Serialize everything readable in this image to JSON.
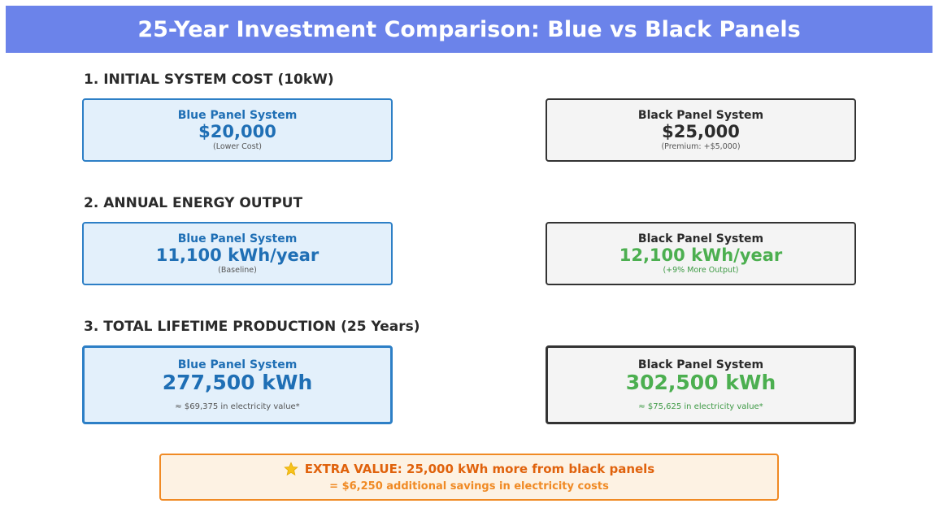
{
  "title": "25-Year Investment Comparison: Blue vs Black Panels",
  "sections": [
    {
      "heading": "1. INITIAL SYSTEM COST (10kW)",
      "blue": {
        "label": "Blue Panel System",
        "value": "$20,000",
        "note": "(Lower Cost)"
      },
      "black": {
        "label": "Black Panel System",
        "value": "$25,000",
        "note": "(Premium: +$5,000)"
      }
    },
    {
      "heading": "2. ANNUAL ENERGY OUTPUT",
      "blue": {
        "label": "Blue Panel System",
        "value": "11,100 kWh/year",
        "note": "(Baseline)"
      },
      "black": {
        "label": "Black Panel System",
        "value": "12,100 kWh/year",
        "note": "(+9% More Output)"
      }
    },
    {
      "heading": "3. TOTAL LIFETIME PRODUCTION (25 Years)",
      "blue": {
        "label": "Blue Panel System",
        "value": "277,500 kWh",
        "note": "≈ $69,375 in electricity value*"
      },
      "black": {
        "label": "Black Panel System",
        "value": "302,500 kWh",
        "note": "≈ $75,625 in electricity value*"
      }
    }
  ],
  "summary": {
    "icon": "star-icon",
    "line1": "EXTRA VALUE: 25,000 kWh more from black panels",
    "line2": "= $6,250 additional savings in electricity costs"
  },
  "colors": {
    "banner": "#6b83ea",
    "blue_accent": "#1f6fb5",
    "black_accent": "#2b2b2b",
    "green": "#4caf50",
    "orange": "#f08a24"
  }
}
